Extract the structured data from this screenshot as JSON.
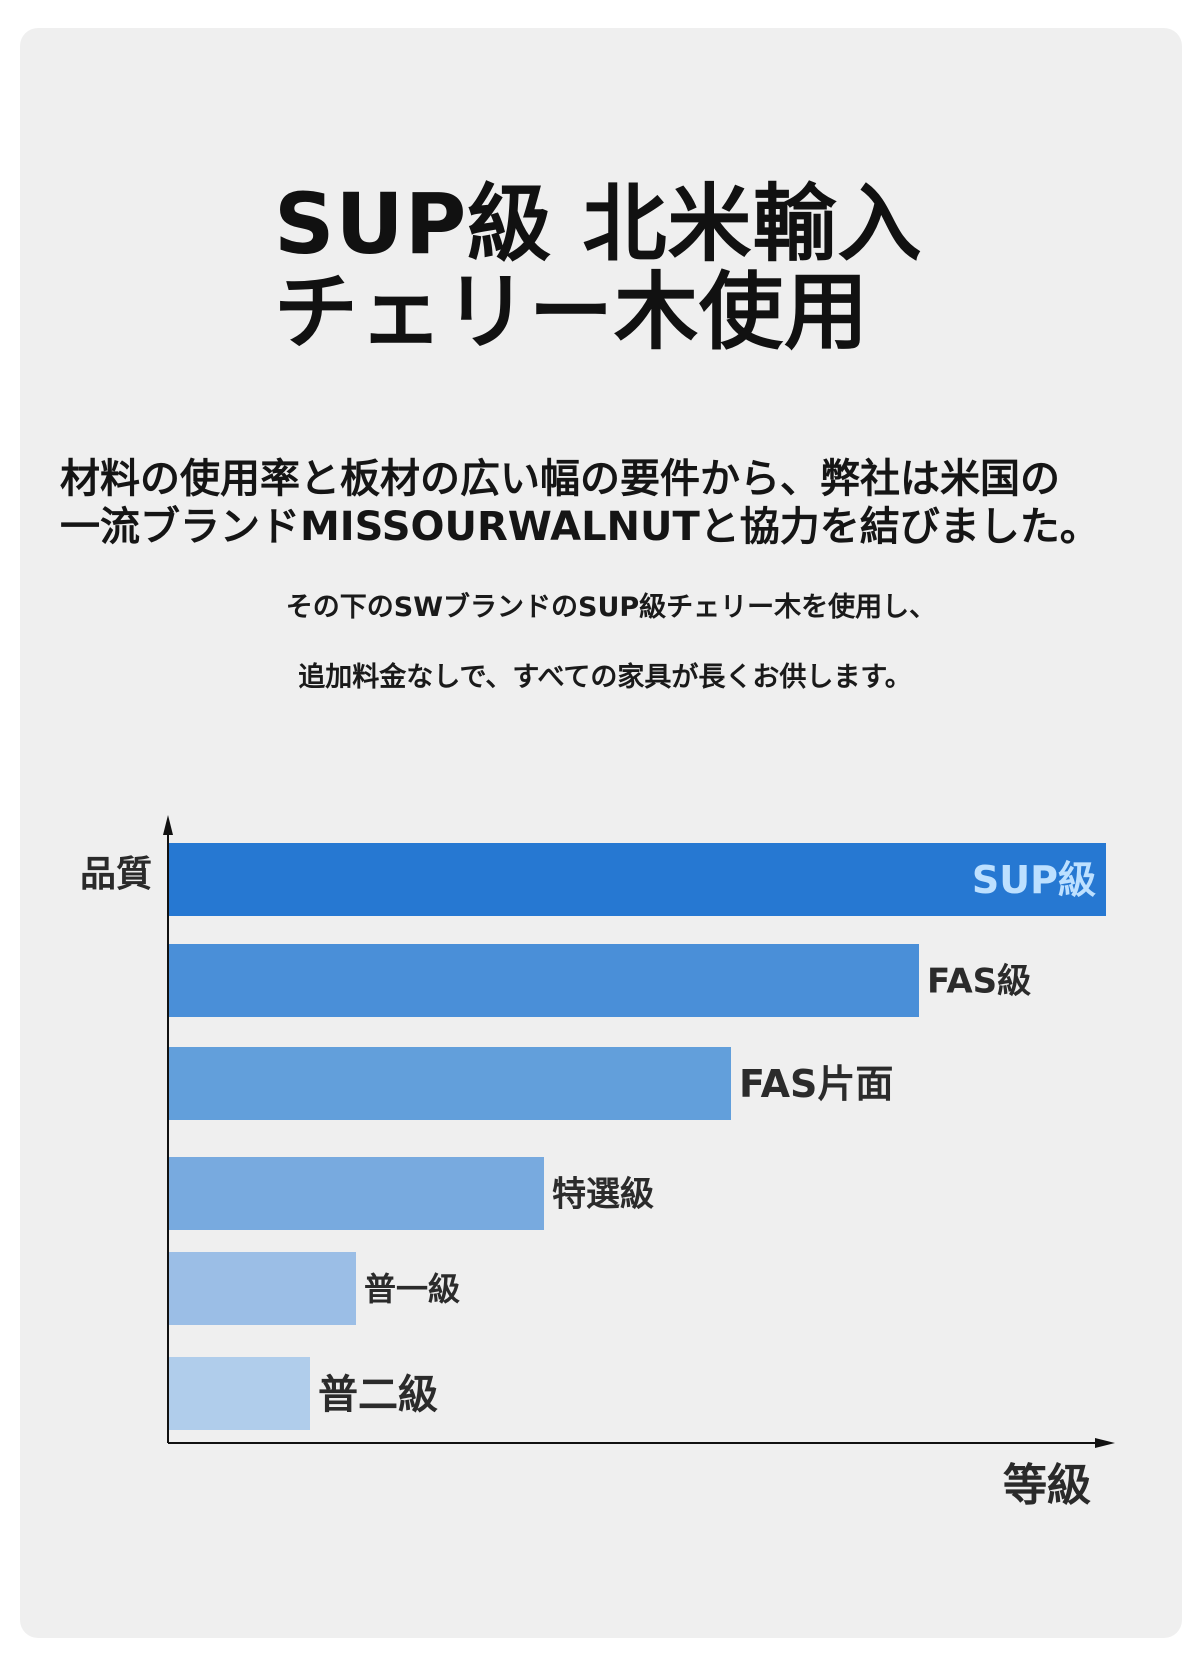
{
  "title": {
    "line1": "SUP級 北米輸入",
    "line2": "チェリー木使用"
  },
  "lead": {
    "line1": "材料の使用率と板材の広い幅の要件から、弊社は米国の",
    "line2": "一流ブランドMISSOURWALNUTと協力を結びました。"
  },
  "sub": {
    "line1": "その下のSWブランドのSUP級チェリー木を使用し、",
    "line2": "追加料金なしで、すべての家具が長くお供します。"
  },
  "chart_data": {
    "type": "bar",
    "orientation": "horizontal",
    "ylabel": "品質",
    "xlabel": "等級",
    "categories": [
      "SUP級",
      "FAS級",
      "FAS片面",
      "特選級",
      "普一級",
      "普二級"
    ],
    "values": [
      100,
      80,
      60,
      40,
      20,
      15
    ],
    "xlim": [
      0,
      100
    ],
    "grid": false,
    "colors": [
      "#2678d2",
      "#4a8fd8",
      "#629fdb",
      "#78aadf",
      "#9bbee6",
      "#b0cdeb"
    ]
  }
}
